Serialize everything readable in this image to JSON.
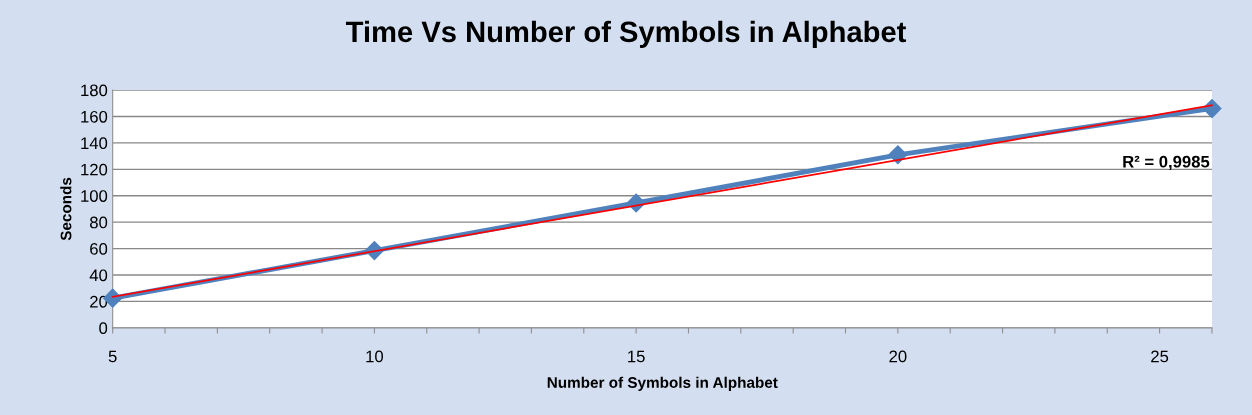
{
  "chart_data": {
    "type": "line",
    "title": "Time Vs Number of Symbols in Alphabet",
    "xlabel": "Number of Symbols in Alphabet",
    "ylabel": "Seconds",
    "series": [
      {
        "color": "#4f81bd",
        "marker": "diamond",
        "x": [
          5,
          10,
          15,
          20,
          26
        ],
        "values": [
          22.5,
          58.5,
          94.5,
          131,
          166
        ]
      },
      {
        "color": "#ff0000",
        "marker": "none",
        "x": [
          5,
          26
        ],
        "values": [
          23.5,
          168.5
        ]
      }
    ],
    "annotations": [
      "R² = 0,9985"
    ],
    "xlim": [
      5,
      26
    ],
    "xticks": [
      5,
      {
        "value": 6,
        "label": null
      },
      {
        "value": 7,
        "label": null
      },
      {
        "value": 8,
        "label": null
      },
      {
        "value": 9,
        "label": null
      },
      10,
      {
        "value": 11,
        "label": null
      },
      {
        "value": 12,
        "label": null
      },
      {
        "value": 13,
        "label": null
      },
      {
        "value": 14,
        "label": null
      },
      15,
      {
        "value": 16,
        "label": null
      },
      {
        "value": 17,
        "label": null
      },
      {
        "value": 18,
        "label": null
      },
      {
        "value": 19,
        "label": null
      },
      20,
      {
        "value": 21,
        "label": null
      },
      {
        "value": 22,
        "label": null
      },
      {
        "value": 23,
        "label": null
      },
      {
        "value": 24,
        "label": null
      },
      25,
      {
        "value": 26,
        "label": null
      }
    ],
    "ylim": [
      0,
      180
    ],
    "yticks": [
      0,
      20,
      40,
      60,
      80,
      100,
      120,
      140,
      160,
      180
    ],
    "grid": "y"
  }
}
